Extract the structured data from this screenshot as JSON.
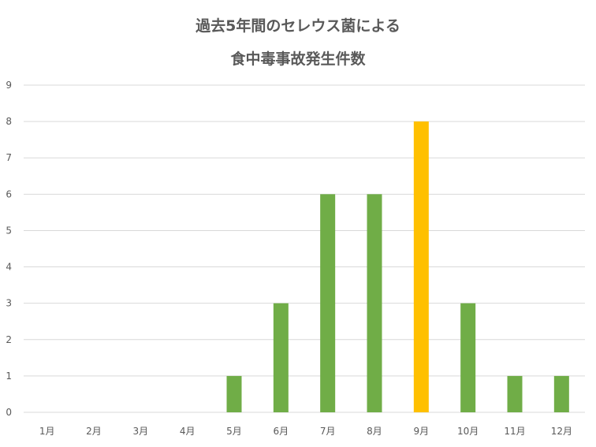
{
  "chart_data": {
    "type": "bar",
    "title_lines": [
      "過去5年間のセレウス菌による",
      "食中毒事故発生件数"
    ],
    "categories": [
      "1月",
      "2月",
      "3月",
      "4月",
      "5月",
      "6月",
      "7月",
      "8月",
      "9月",
      "10月",
      "11月",
      "12月"
    ],
    "values": [
      0,
      0,
      0,
      0,
      1,
      3,
      6,
      6,
      8,
      3,
      1,
      1
    ],
    "highlight_index": 8,
    "colors": {
      "bar": "#70AD47",
      "highlight": "#FFC000",
      "grid": "#D9D9D9",
      "tick": "#595959"
    },
    "ylim": [
      0,
      9
    ],
    "yticks": [
      0,
      1,
      2,
      3,
      4,
      5,
      6,
      7,
      8,
      9
    ],
    "grid": true,
    "xlabel": "",
    "ylabel": ""
  }
}
